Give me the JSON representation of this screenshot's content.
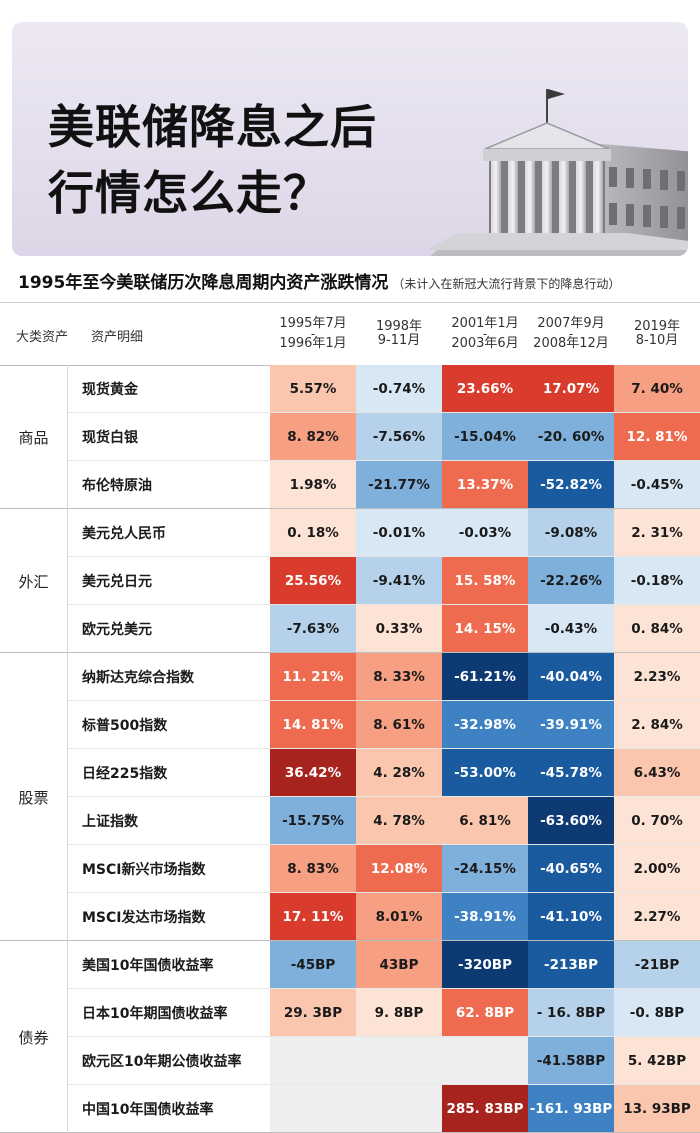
{
  "banner": {
    "title_line1": "美联储降息之后",
    "title_line2": "行情怎么走？",
    "building_icon": "federal-reserve-building-icon"
  },
  "chart_data": {
    "type": "table",
    "title": "1995年至今美联储历次降息周期内资产涨跌情况",
    "note": "（未计入在新冠大流行背景下的降息行动）",
    "header": {
      "asset_class": "大类资产",
      "asset_detail": "资产明细"
    },
    "periods": [
      {
        "line1": "1995年7月",
        "dash": "-",
        "line2": "1996年1月"
      },
      {
        "line1": "1998年",
        "dash": "",
        "line2": "9-11月"
      },
      {
        "line1": "2001年1月",
        "dash": "-",
        "line2": "2003年6月"
      },
      {
        "line1": "2007年9月",
        "dash": "-",
        "line2": "2008年12月"
      },
      {
        "line1": "2019年",
        "dash": "",
        "line2": "8-10月"
      }
    ],
    "groups": [
      {
        "name": "商品",
        "rows": [
          {
            "name": "现货黄金",
            "cells": [
              {
                "text": "5.57%",
                "value": 5.57
              },
              {
                "text": "-0.74%",
                "value": -0.74
              },
              {
                "text": "23.66%",
                "value": 23.66
              },
              {
                "text": "17.07%",
                "value": 17.07
              },
              {
                "text": "7. 40%",
                "value": 7.4
              }
            ]
          },
          {
            "name": "现货白银",
            "cells": [
              {
                "text": "8. 82%",
                "value": 8.82
              },
              {
                "text": "-7.56%",
                "value": -7.56
              },
              {
                "text": "-15.04%",
                "value": -15.04
              },
              {
                "text": "-20. 60%",
                "value": -20.6
              },
              {
                "text": "12. 81%",
                "value": 12.81
              }
            ]
          },
          {
            "name": "布伦特原油",
            "cells": [
              {
                "text": "1.98%",
                "value": 1.98
              },
              {
                "text": "-21.77%",
                "value": -21.77
              },
              {
                "text": "13.37%",
                "value": 13.37
              },
              {
                "text": "-52.82%",
                "value": -52.82
              },
              {
                "text": "-0.45%",
                "value": -0.45
              }
            ]
          }
        ]
      },
      {
        "name": "外汇",
        "rows": [
          {
            "name": "美元兑人民币",
            "cells": [
              {
                "text": "0. 18%",
                "value": 0.18
              },
              {
                "text": "-0.01%",
                "value": -0.01
              },
              {
                "text": "-0.03%",
                "value": -0.03
              },
              {
                "text": "-9.08%",
                "value": -9.08
              },
              {
                "text": "2. 31%",
                "value": 2.31
              }
            ]
          },
          {
            "name": "美元兑日元",
            "cells": [
              {
                "text": "25.56%",
                "value": 25.56
              },
              {
                "text": "-9.41%",
                "value": -9.41
              },
              {
                "text": "15. 58%",
                "value": 15.58
              },
              {
                "text": "-22.26%",
                "value": -22.26
              },
              {
                "text": "-0.18%",
                "value": -0.18
              }
            ]
          },
          {
            "name": "欧元兑美元",
            "cells": [
              {
                "text": "-7.63%",
                "value": -7.63
              },
              {
                "text": "0.33%",
                "value": 0.33
              },
              {
                "text": "14. 15%",
                "value": 14.15
              },
              {
                "text": "-0.43%",
                "value": -0.43
              },
              {
                "text": "0. 84%",
                "value": 0.84
              }
            ]
          }
        ]
      },
      {
        "name": "股票",
        "rows": [
          {
            "name": "纳斯达克综合指数",
            "cells": [
              {
                "text": "11. 21%",
                "value": 11.21
              },
              {
                "text": "8. 33%",
                "value": 8.33
              },
              {
                "text": "-61.21%",
                "value": -61.21
              },
              {
                "text": "-40.04%",
                "value": -40.04
              },
              {
                "text": "2.23%",
                "value": 2.23
              }
            ]
          },
          {
            "name": "标普500指数",
            "cells": [
              {
                "text": "14. 81%",
                "value": 14.81
              },
              {
                "text": "8. 61%",
                "value": 8.61
              },
              {
                "text": "-32.98%",
                "value": -32.98
              },
              {
                "text": "-39.91%",
                "value": -39.91
              },
              {
                "text": "2. 84%",
                "value": 2.84
              }
            ]
          },
          {
            "name": "日经225指数",
            "cells": [
              {
                "text": "36.42%",
                "value": 36.42
              },
              {
                "text": "4. 28%",
                "value": 4.28
              },
              {
                "text": "-53.00%",
                "value": -53.0
              },
              {
                "text": "-45.78%",
                "value": -45.78
              },
              {
                "text": "6.43%",
                "value": 6.43
              }
            ]
          },
          {
            "name": "上证指数",
            "cells": [
              {
                "text": "-15.75%",
                "value": -15.75
              },
              {
                "text": "4. 78%",
                "value": 4.78
              },
              {
                "text": "6. 81%",
                "value": 6.81
              },
              {
                "text": "-63.60%",
                "value": -63.6
              },
              {
                "text": "0. 70%",
                "value": 0.7
              }
            ]
          },
          {
            "name": "MSCI新兴市场指数",
            "cells": [
              {
                "text": "8. 83%",
                "value": 8.83
              },
              {
                "text": "12.08%",
                "value": 12.08
              },
              {
                "text": "-24.15%",
                "value": -24.15
              },
              {
                "text": "-40.65%",
                "value": -40.65
              },
              {
                "text": "2.00%",
                "value": 2.0
              }
            ]
          },
          {
            "name": "MSCI发达市场指数",
            "cells": [
              {
                "text": "17. 11%",
                "value": 17.11
              },
              {
                "text": "8.01%",
                "value": 8.01
              },
              {
                "text": "-38.91%",
                "value": -38.91
              },
              {
                "text": "-41.10%",
                "value": -41.1
              },
              {
                "text": "2.27%",
                "value": 2.27
              }
            ]
          }
        ]
      },
      {
        "name": "债券",
        "rows": [
          {
            "name": "美国10年国债收益率",
            "cells": [
              {
                "text": "-45BP",
                "value": -45
              },
              {
                "text": "43BP",
                "value": 43
              },
              {
                "text": "-320BP",
                "value": -320
              },
              {
                "text": "-213BP",
                "value": -213
              },
              {
                "text": "-21BP",
                "value": -21
              }
            ]
          },
          {
            "name": "日本10年期国债收益率",
            "cells": [
              {
                "text": "29. 3BP",
                "value": 29.3
              },
              {
                "text": "9. 8BP",
                "value": 9.8
              },
              {
                "text": "62. 8BP",
                "value": 62.8
              },
              {
                "text": "- 16. 8BP",
                "value": -16.8
              },
              {
                "text": "-0. 8BP",
                "value": -0.8
              }
            ]
          },
          {
            "name": "欧元区10年期公债收益率",
            "cells": [
              {
                "text": "",
                "value": null
              },
              {
                "text": "",
                "value": null
              },
              {
                "text": "",
                "value": null
              },
              {
                "text": "-41.58BP",
                "value": -41.58
              },
              {
                "text": "5. 42BP",
                "value": 5.42
              }
            ]
          },
          {
            "name": "中国10年国债收益率",
            "cells": [
              {
                "text": "",
                "value": null
              },
              {
                "text": "",
                "value": null
              },
              {
                "text": "285. 83BP",
                "value": 285.83
              },
              {
                "text": "-161. 93BP",
                "value": -161.93
              },
              {
                "text": "13. 93BP",
                "value": 13.93
              }
            ]
          }
        ]
      }
    ],
    "palette": {
      "missing": "#eeeeee",
      "positive": [
        "#fde3d6",
        "#fbc6ae",
        "#f69f82",
        "#ef6b4f",
        "#d93b2c",
        "#a7231e"
      ],
      "negative": [
        "#d7e7f4",
        "#b6d2ea",
        "#7fb0dc",
        "#3f82c3",
        "#1a5a9e",
        "#0d3a73"
      ]
    }
  }
}
